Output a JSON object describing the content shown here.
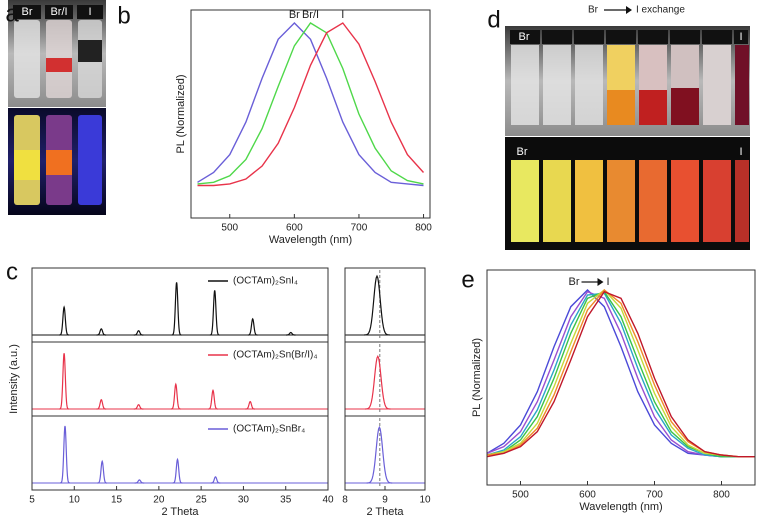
{
  "panel_labels": [
    "a",
    "b",
    "c",
    "d",
    "e"
  ],
  "photos": {
    "a": {
      "vials": [
        "Br",
        "Br/I",
        "I"
      ]
    },
    "d": {
      "header_from": "Br",
      "header_to": "I exchange",
      "top_labels": [
        "Br",
        "I"
      ],
      "bottom_labels": [
        "Br",
        "I"
      ]
    }
  },
  "chart_data": [
    {
      "type": "line",
      "xlabel": "Wavelength (nm)",
      "ylabel": "PL (Normalized)",
      "x": [
        450,
        475,
        500,
        525,
        550,
        575,
        600,
        625,
        650,
        675,
        700,
        725,
        750,
        775,
        800
      ],
      "series": [
        {
          "name": "Br",
          "color": "#6a5fd8",
          "values": [
            0.02,
            0.08,
            0.19,
            0.39,
            0.66,
            0.9,
            1,
            0.9,
            0.66,
            0.39,
            0.19,
            0.08,
            0.02,
            0.01,
            0
          ]
        },
        {
          "name": "Br/I",
          "color": "#4fd84a",
          "values": [
            0.01,
            0.02,
            0.06,
            0.16,
            0.35,
            0.61,
            0.86,
            1.0,
            0.94,
            0.72,
            0.44,
            0.23,
            0.09,
            0.03,
            0.01
          ]
        },
        {
          "name": "I",
          "color": "#e8334a",
          "values": [
            0,
            0,
            0.01,
            0.04,
            0.12,
            0.26,
            0.48,
            0.74,
            0.94,
            1.0,
            0.87,
            0.64,
            0.39,
            0.19,
            0.08
          ]
        }
      ],
      "xlim": [
        440,
        810
      ],
      "xticks": [
        500,
        600,
        700,
        800
      ],
      "ylim": [
        -0.2,
        1.08
      ]
    },
    {
      "type": "stem",
      "xlabel": "2 Theta",
      "ylabel": "Intensity (a.u.)",
      "series": [
        {
          "name": "(OCTAm)₂SnI₄",
          "color": "#111111",
          "x": [
            8.8,
            13.2,
            17.6,
            22.1,
            26.6,
            31.1,
            35.6
          ],
          "values": [
            0.45,
            0.1,
            0.07,
            0.85,
            0.72,
            0.26,
            0.04
          ]
        },
        {
          "name": "(OCTAm)₂Sn(Br/I)₄",
          "color": "#e8334a",
          "x": [
            8.8,
            13.2,
            17.6,
            22.0,
            26.4,
            30.8
          ],
          "values": [
            0.9,
            0.15,
            0.07,
            0.4,
            0.3,
            0.12
          ]
        },
        {
          "name": "(OCTAm)₂SnBr₄",
          "color": "#6a5fd8",
          "x": [
            8.9,
            13.3,
            17.7,
            22.2,
            26.7
          ],
          "values": [
            0.92,
            0.35,
            0.05,
            0.38,
            0.1
          ]
        }
      ],
      "xlim": [
        5,
        40
      ],
      "xticks": [
        5,
        10,
        15,
        20,
        25,
        30,
        35,
        40
      ],
      "ylim": [
        0,
        1
      ]
    },
    {
      "type": "stem",
      "xlabel": "2 Theta",
      "series": [
        {
          "color": "#111111",
          "x": [
            8.8
          ],
          "values": [
            0.95
          ]
        },
        {
          "color": "#e8334a",
          "x": [
            8.82
          ],
          "values": [
            0.85
          ]
        },
        {
          "color": "#6a5fd8",
          "x": [
            8.86
          ],
          "values": [
            0.9
          ]
        }
      ],
      "xlim": [
        8,
        10
      ],
      "xticks": [
        8,
        9,
        10
      ],
      "ylim": [
        0,
        1
      ],
      "reference_x": 8.87
    },
    {
      "type": "line",
      "xlabel": "Wavelength (nm)",
      "ylabel": "PL (Normalized)",
      "annotation": {
        "from": "Br",
        "to": "I"
      },
      "x": [
        450,
        475,
        500,
        525,
        550,
        575,
        600,
        625,
        650,
        675,
        700,
        725,
        750,
        775,
        800,
        825,
        850
      ],
      "series": [
        {
          "color": "#4b4ad8",
          "values": [
            0.02,
            0.08,
            0.19,
            0.39,
            0.66,
            0.9,
            1,
            0.9,
            0.66,
            0.39,
            0.19,
            0.08,
            0.02,
            0.01,
            0,
            0,
            0
          ]
        },
        {
          "color": "#9a4fd0",
          "values": [
            0.02,
            0.06,
            0.15,
            0.33,
            0.58,
            0.84,
            0.99,
            0.95,
            0.74,
            0.47,
            0.24,
            0.1,
            0.03,
            0.01,
            0,
            0,
            0
          ]
        },
        {
          "color": "#2aa6c8",
          "values": [
            0.01,
            0.04,
            0.12,
            0.28,
            0.52,
            0.79,
            0.97,
            0.98,
            0.8,
            0.53,
            0.29,
            0.13,
            0.05,
            0.01,
            0,
            0,
            0
          ]
        },
        {
          "color": "#3ac24a",
          "values": [
            0.01,
            0.03,
            0.1,
            0.24,
            0.47,
            0.74,
            0.95,
            0.99,
            0.84,
            0.58,
            0.33,
            0.15,
            0.06,
            0.02,
            0,
            0,
            0
          ]
        },
        {
          "color": "#c6d83a",
          "values": [
            0.01,
            0.03,
            0.08,
            0.2,
            0.42,
            0.68,
            0.92,
            1.0,
            0.89,
            0.64,
            0.38,
            0.18,
            0.07,
            0.02,
            0.01,
            0,
            0
          ]
        },
        {
          "color": "#f08a2a",
          "values": [
            0.01,
            0.02,
            0.07,
            0.17,
            0.37,
            0.63,
            0.88,
            1.0,
            0.92,
            0.69,
            0.43,
            0.21,
            0.09,
            0.03,
            0.01,
            0,
            0
          ]
        },
        {
          "color": "#c0182a",
          "values": [
            0,
            0.02,
            0.06,
            0.15,
            0.33,
            0.58,
            0.84,
            0.99,
            0.95,
            0.74,
            0.47,
            0.24,
            0.1,
            0.03,
            0.01,
            0,
            0
          ]
        }
      ],
      "xlim": [
        450,
        850
      ],
      "xticks": [
        500,
        600,
        700,
        800
      ],
      "ylim": [
        -0.17,
        1.12
      ]
    }
  ]
}
